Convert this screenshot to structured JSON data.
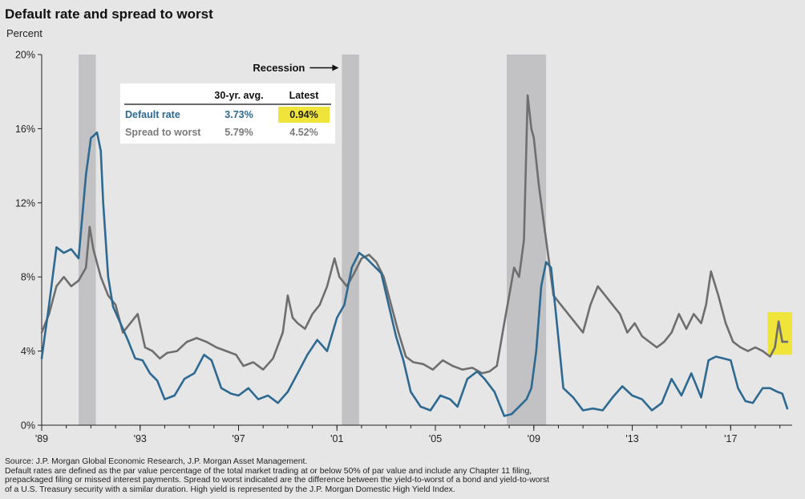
{
  "chart_data": {
    "type": "line",
    "title": "Default rate and spread to worst",
    "ylabel": "Percent",
    "xlim": [
      1989,
      2019.5
    ],
    "ylim": [
      0,
      20
    ],
    "y_ticks": [
      0,
      4,
      8,
      12,
      16,
      20
    ],
    "y_tick_labels": [
      "0%",
      "4%",
      "8%",
      "12%",
      "16%",
      "20%"
    ],
    "x_ticks": [
      1989,
      1993,
      1997,
      2001,
      2005,
      2009,
      2013,
      2017
    ],
    "x_tick_labels": [
      "'89",
      "'93",
      "'97",
      "'01",
      "'05",
      "'09",
      "'13",
      "'17"
    ],
    "grid": false,
    "recessions": [
      [
        1990.5,
        1991.2
      ],
      [
        2001.2,
        2001.9
      ],
      [
        2007.9,
        2009.5
      ]
    ],
    "recession_label": "Recession",
    "series": [
      {
        "name": "Default rate",
        "color": "#2e6991",
        "x": [
          1989.0,
          1989.3,
          1989.6,
          1989.9,
          1990.2,
          1990.5,
          1990.8,
          1991.0,
          1991.1,
          1991.25,
          1991.4,
          1991.5,
          1991.7,
          1991.9,
          1992.2,
          1992.5,
          1992.8,
          1993.1,
          1993.4,
          1993.7,
          1994.0,
          1994.4,
          1994.8,
          1995.2,
          1995.6,
          1995.9,
          1996.3,
          1996.7,
          1997.0,
          1997.4,
          1997.8,
          1998.2,
          1998.6,
          1999.0,
          1999.4,
          1999.8,
          2000.2,
          2000.6,
          2001.0,
          2001.3,
          2001.6,
          2001.9,
          2002.2,
          2002.5,
          2002.8,
          2003.1,
          2003.4,
          2003.7,
          2004.0,
          2004.4,
          2004.8,
          2005.2,
          2005.6,
          2005.9,
          2006.3,
          2006.7,
          2007.0,
          2007.4,
          2007.8,
          2008.1,
          2008.4,
          2008.7,
          2008.9,
          2009.1,
          2009.3,
          2009.5,
          2009.7,
          2009.9,
          2010.2,
          2010.6,
          2011.0,
          2011.4,
          2011.8,
          2012.2,
          2012.6,
          2013.0,
          2013.4,
          2013.8,
          2014.2,
          2014.6,
          2015.0,
          2015.4,
          2015.8,
          2016.1,
          2016.4,
          2016.7,
          2017.0,
          2017.3,
          2017.6,
          2017.9,
          2018.3,
          2018.6,
          2018.9,
          2019.1,
          2019.3
        ],
        "values": [
          3.6,
          6.5,
          9.6,
          9.3,
          9.5,
          9.0,
          13.5,
          15.5,
          15.6,
          15.8,
          14.8,
          12.0,
          8.0,
          6.4,
          5.5,
          4.6,
          3.6,
          3.5,
          2.8,
          2.4,
          1.4,
          1.6,
          2.5,
          2.8,
          3.8,
          3.5,
          2.0,
          1.7,
          1.6,
          2.0,
          1.4,
          1.6,
          1.2,
          1.8,
          2.8,
          3.8,
          4.6,
          4.0,
          5.8,
          6.5,
          8.5,
          9.3,
          9.0,
          8.6,
          8.2,
          6.5,
          4.8,
          3.5,
          1.8,
          1.0,
          0.8,
          1.6,
          1.4,
          1.0,
          2.5,
          2.9,
          2.5,
          1.8,
          0.5,
          0.6,
          1.0,
          1.4,
          2.0,
          4.0,
          7.5,
          8.8,
          8.5,
          6.0,
          2.0,
          1.5,
          0.8,
          0.9,
          0.8,
          1.5,
          2.1,
          1.6,
          1.4,
          0.8,
          1.2,
          2.5,
          1.6,
          2.8,
          1.5,
          3.5,
          3.7,
          3.6,
          3.5,
          2.0,
          1.3,
          1.2,
          2.0,
          2.0,
          1.8,
          1.7,
          0.9
        ]
      },
      {
        "name": "Spread to worst",
        "color": "#6e6e6e",
        "x": [
          1989.0,
          1989.3,
          1989.6,
          1989.9,
          1990.2,
          1990.5,
          1990.8,
          1990.95,
          1991.1,
          1991.4,
          1991.7,
          1992.0,
          1992.3,
          1992.6,
          1992.9,
          1993.2,
          1993.5,
          1993.8,
          1994.1,
          1994.5,
          1994.9,
          1995.3,
          1995.7,
          1996.1,
          1996.5,
          1996.9,
          1997.2,
          1997.6,
          1998.0,
          1998.4,
          1998.8,
          1999.0,
          1999.2,
          1999.4,
          1999.7,
          2000.0,
          2000.3,
          2000.6,
          2000.9,
          2001.1,
          2001.4,
          2001.7,
          2002.0,
          2002.3,
          2002.6,
          2002.9,
          2003.2,
          2003.5,
          2003.8,
          2004.1,
          2004.5,
          2004.9,
          2005.3,
          2005.7,
          2006.1,
          2006.5,
          2006.9,
          2007.2,
          2007.5,
          2007.8,
          2008.0,
          2008.2,
          2008.4,
          2008.6,
          2008.75,
          2008.9,
          2009.0,
          2009.2,
          2009.4,
          2009.6,
          2009.8,
          2010.1,
          2010.4,
          2010.7,
          2011.0,
          2011.3,
          2011.6,
          2011.9,
          2012.2,
          2012.5,
          2012.8,
          2013.1,
          2013.4,
          2013.7,
          2014.0,
          2014.3,
          2014.6,
          2014.9,
          2015.2,
          2015.5,
          2015.8,
          2016.0,
          2016.2,
          2016.5,
          2016.8,
          2017.1,
          2017.4,
          2017.7,
          2018.0,
          2018.3,
          2018.6,
          2018.8,
          2018.95,
          2019.1,
          2019.3
        ],
        "values": [
          5.0,
          6.0,
          7.5,
          8.0,
          7.5,
          7.8,
          8.5,
          10.7,
          9.5,
          8.0,
          7.0,
          6.5,
          5.0,
          5.5,
          6.0,
          4.2,
          4.0,
          3.6,
          3.9,
          4.0,
          4.5,
          4.7,
          4.5,
          4.2,
          4.0,
          3.8,
          3.2,
          3.4,
          3.0,
          3.6,
          5.0,
          7.0,
          5.8,
          5.5,
          5.2,
          6.0,
          6.5,
          7.5,
          9.0,
          8.0,
          7.5,
          8.2,
          9.0,
          9.2,
          8.8,
          8.0,
          6.5,
          5.0,
          3.7,
          3.4,
          3.3,
          3.0,
          3.5,
          3.2,
          3.0,
          3.1,
          2.8,
          2.9,
          3.2,
          5.5,
          7.0,
          8.5,
          8.0,
          10.0,
          17.8,
          16.0,
          15.5,
          13.0,
          11.0,
          9.0,
          7.0,
          6.5,
          6.0,
          5.5,
          5.0,
          6.5,
          7.5,
          7.0,
          6.5,
          6.0,
          5.0,
          5.5,
          4.8,
          4.5,
          4.2,
          4.5,
          5.0,
          6.0,
          5.2,
          6.0,
          5.5,
          6.5,
          8.3,
          7.0,
          5.5,
          4.5,
          4.2,
          4.0,
          4.2,
          4.0,
          3.7,
          4.2,
          5.6,
          4.5,
          4.5
        ]
      }
    ],
    "highlight_box": {
      "x": [
        2018.5,
        2019.5
      ],
      "y": [
        3.8,
        6.1
      ],
      "color": "#f0e43a"
    },
    "legend": {
      "col_headers": [
        "30-yr. avg.",
        "Latest"
      ],
      "rows": [
        {
          "name": "Default rate",
          "avg": "3.73%",
          "latest": "0.94%",
          "color": "#2e6991"
        },
        {
          "name": "Spread to worst",
          "avg": "5.79%",
          "latest": "4.52%",
          "color": "#7a7a7a"
        }
      ],
      "latest_highlight_color": "#f0e43a",
      "placement": "top-left"
    }
  },
  "footnotes": [
    "Source: J.P. Morgan Global Economic Research, J.P. Morgan Asset Management.",
    "Default rates are defined as the par value percentage of the total market trading at or below 50% of par value and include any Chapter 11 filing,",
    "prepackaged filing or missed interest payments. Spread to worst indicated are the difference between the yield-to-worst of a bond and yield-to-worst",
    "of a U.S. Treasury security with a similar duration. High yield is represented by the J.P. Morgan Domestic High Yield Index."
  ],
  "colors": {
    "background": "#e6e6e6",
    "recession": "#c2c2c4",
    "legend_bg": "#ffffff"
  }
}
